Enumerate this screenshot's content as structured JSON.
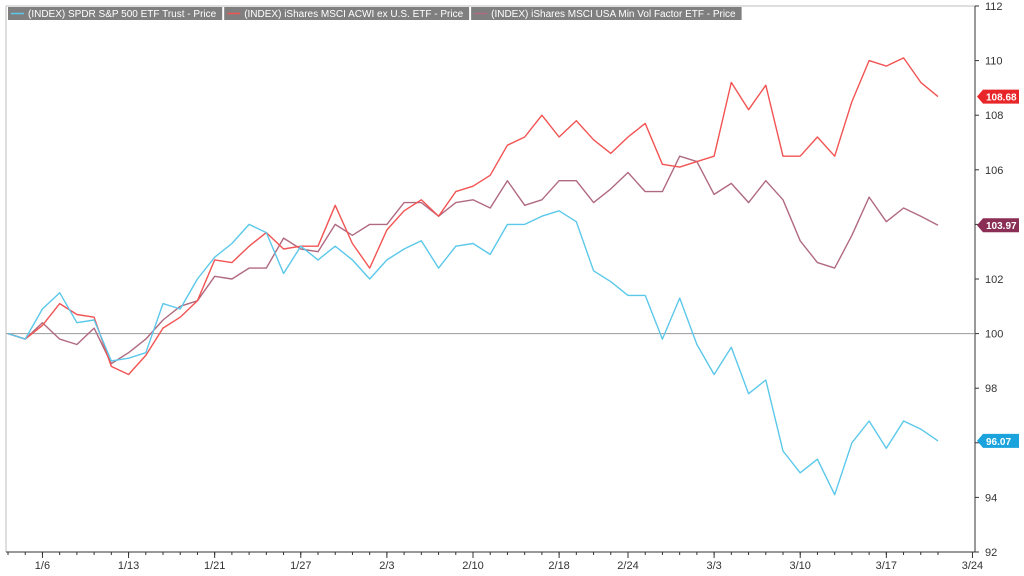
{
  "chart_data": {
    "type": "line",
    "title": "",
    "xlabel": "",
    "ylabel": "",
    "ylim": [
      92,
      112
    ],
    "y_ticks": [
      92,
      94,
      96,
      98,
      100,
      102,
      104,
      106,
      108,
      110,
      112
    ],
    "x_tick_labels": [
      "1/6",
      "1/13",
      "1/21",
      "1/27",
      "2/3",
      "2/10",
      "2/18",
      "2/24",
      "3/3",
      "3/10",
      "3/17",
      "3/24"
    ],
    "x_tick_indices": [
      2,
      7,
      12,
      17,
      22,
      27,
      32,
      36,
      41,
      46,
      51,
      56
    ],
    "reference_line": 100,
    "grid": false,
    "legend_position": "top-left",
    "colors": {
      "spy": "#5bc8ea",
      "acwx": "#f25353",
      "usmv": "#b06a80",
      "reference": "#999999"
    },
    "series": [
      {
        "name": "(INDEX) SPDR S&P 500 ETF Trust - Price",
        "color": "#5bc8ea",
        "end_label": "96.07",
        "label_bg": "#1aa3dc",
        "values": [
          100.0,
          99.8,
          100.9,
          101.5,
          100.4,
          100.5,
          99.0,
          99.1,
          99.3,
          101.1,
          100.9,
          102.0,
          102.8,
          103.3,
          104.0,
          103.7,
          102.2,
          103.2,
          102.7,
          103.2,
          102.7,
          102.0,
          102.7,
          103.1,
          103.4,
          102.4,
          103.2,
          103.3,
          102.9,
          104.0,
          104.0,
          104.3,
          104.5,
          104.1,
          102.3,
          101.9,
          101.4,
          101.4,
          99.8,
          101.3,
          99.6,
          98.5,
          99.5,
          97.8,
          98.3,
          95.7,
          94.9,
          95.4,
          94.1,
          96.0,
          96.8,
          95.8,
          96.8,
          96.5,
          96.07
        ]
      },
      {
        "name": "(INDEX) iShares MSCI ACWI ex U.S. ETF - Price",
        "color": "#f25353",
        "end_label": "108.68",
        "label_bg": "#e8262a",
        "values": [
          100.0,
          99.8,
          100.3,
          101.1,
          100.7,
          100.6,
          98.8,
          98.5,
          99.2,
          100.2,
          100.6,
          101.2,
          102.7,
          102.6,
          103.2,
          103.7,
          103.1,
          103.2,
          103.2,
          104.7,
          103.3,
          102.4,
          103.8,
          104.5,
          104.9,
          104.3,
          105.2,
          105.4,
          105.8,
          106.9,
          107.2,
          108.0,
          107.2,
          107.8,
          107.1,
          106.6,
          107.2,
          107.7,
          106.2,
          106.1,
          106.3,
          106.5,
          109.2,
          108.2,
          109.1,
          106.5,
          106.5,
          107.2,
          106.5,
          108.5,
          110.0,
          109.8,
          110.1,
          109.2,
          108.68
        ]
      },
      {
        "name": "(INDEX) iShares MSCI USA Min Vol Factor ETF - Price",
        "color": "#b06a80",
        "end_label": "103.97",
        "label_bg": "#8b2e55",
        "values": [
          100.0,
          99.8,
          100.4,
          99.8,
          99.6,
          100.2,
          98.9,
          99.3,
          99.8,
          100.5,
          101.0,
          101.2,
          102.1,
          102.0,
          102.4,
          102.4,
          103.5,
          103.1,
          103.0,
          104.0,
          103.6,
          104.0,
          104.0,
          104.8,
          104.8,
          104.3,
          104.8,
          104.9,
          104.6,
          105.6,
          104.7,
          104.9,
          105.6,
          105.6,
          104.8,
          105.3,
          105.9,
          105.2,
          105.2,
          106.5,
          106.3,
          105.1,
          105.5,
          104.8,
          105.6,
          104.9,
          103.4,
          102.6,
          102.4,
          103.6,
          105.0,
          104.1,
          104.6,
          104.3,
          103.97
        ]
      }
    ]
  }
}
